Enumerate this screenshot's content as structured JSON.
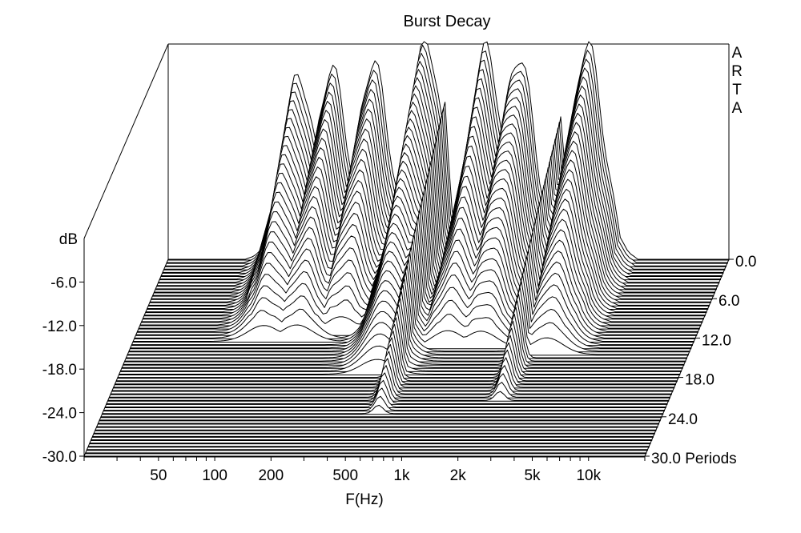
{
  "chart_data": {
    "type": "waterfall",
    "title": "Burst Decay",
    "brand": "ARTA",
    "xlabel": "F(Hz)",
    "ylabel": "dB",
    "zlabel_unit": "Periods",
    "x_scale": "log",
    "x_range": [
      20,
      20000
    ],
    "y_range": [
      -30,
      0
    ],
    "z_range": [
      0,
      30
    ],
    "x_ticks": [
      {
        "value": 50,
        "label": "50"
      },
      {
        "value": 100,
        "label": "100"
      },
      {
        "value": 200,
        "label": "200"
      },
      {
        "value": 500,
        "label": "500"
      },
      {
        "value": 1000,
        "label": "1k"
      },
      {
        "value": 2000,
        "label": "2k"
      },
      {
        "value": 5000,
        "label": "5k"
      },
      {
        "value": 10000,
        "label": "10k"
      }
    ],
    "y_ticks": [
      {
        "value": -6,
        "label": "-6.0"
      },
      {
        "value": -12,
        "label": "-12.0"
      },
      {
        "value": -18,
        "label": "-18.0"
      },
      {
        "value": -24,
        "label": "-24.0"
      },
      {
        "value": -30,
        "label": "-30.0"
      }
    ],
    "z_ticks": [
      {
        "value": 0,
        "label": "0.0"
      },
      {
        "value": 6,
        "label": "6.0"
      },
      {
        "value": 12,
        "label": "12.0"
      },
      {
        "value": 18,
        "label": "18.0"
      },
      {
        "value": 24,
        "label": "24.0"
      },
      {
        "value": 30,
        "label": "30.0 Periods"
      }
    ],
    "slice_count": 60,
    "front_slice_level_db": -30,
    "features": [
      {
        "freq_hz": 100,
        "peak_db": -4.8,
        "decay_periods": 13
      },
      {
        "freq_hz": 150,
        "peak_db": -3.9,
        "decay_periods": 13
      },
      {
        "freq_hz": 250,
        "peak_db": -3.0,
        "decay_periods": 12
      },
      {
        "freq_hz": 480,
        "peak_db": 0.0,
        "decay_periods": 18
      },
      {
        "freq_hz": 600,
        "peak_db": -9.0,
        "decay_periods": 24
      },
      {
        "freq_hz": 1000,
        "peak_db": -1.0,
        "decay_periods": 14
      },
      {
        "freq_hz": 1500,
        "peak_db": -2.0,
        "decay_periods": 14
      },
      {
        "freq_hz": 3500,
        "peak_db": -0.5,
        "decay_periods": 15
      },
      {
        "freq_hz": 2500,
        "peak_db": -9.0,
        "decay_periods": 22
      },
      {
        "freq_hz": 1000,
        "peak_db": -22.0,
        "decay_periods": 14
      }
    ],
    "grid": false
  }
}
